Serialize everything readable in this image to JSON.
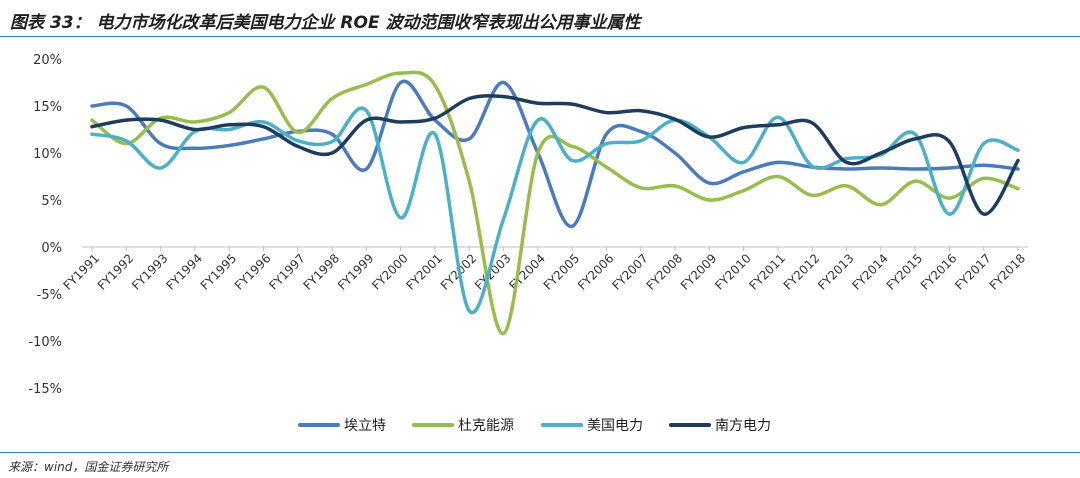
{
  "figure": {
    "title": "图表 33： 电力市场化改革后美国电力企业 ROE 波动范围收窄表现出公用事业属性",
    "source": "来源：wind，国金证券研究所"
  },
  "colors": {
    "rule": "#2c7fb8",
    "axis": "#bfbfbf"
  },
  "chart_data": {
    "type": "line",
    "title": "电力市场化改革后美国电力企业 ROE 波动范围收窄表现出公用事业属性",
    "xlabel": "",
    "ylabel": "",
    "ylim": [
      -15,
      20
    ],
    "ytick_values": [
      -15,
      -10,
      -5,
      0,
      5,
      10,
      15,
      20
    ],
    "ytick_labels": [
      "-15%",
      "-10%",
      "-5%",
      "0%",
      "5%",
      "10%",
      "15%",
      "20%"
    ],
    "grid": false,
    "legend_position": "bottom",
    "categories": [
      "FY1991",
      "FY1992",
      "FY1993",
      "FY1994",
      "FY1995",
      "FY1996",
      "FY1997",
      "FY1998",
      "FY1999",
      "FY2000",
      "FY2001",
      "FY2002",
      "FY2003",
      "FY2004",
      "FY2005",
      "FY2006",
      "FY2007",
      "FY2008",
      "FY2009",
      "FY2010",
      "FY2011",
      "FY2012",
      "FY2013",
      "FY2014",
      "FY2015",
      "FY2016",
      "FY2017",
      "FY2018"
    ],
    "series": [
      {
        "name": "埃立特",
        "color": "#4a7bbd",
        "values": [
          15.0,
          15.0,
          11.0,
          10.5,
          10.8,
          11.5,
          12.3,
          12.0,
          8.3,
          17.5,
          13.5,
          11.5,
          17.5,
          10.0,
          2.2,
          12.0,
          12.3,
          10.0,
          6.8,
          8.0,
          9.0,
          8.5,
          8.3,
          8.4,
          8.3,
          8.4,
          8.7,
          8.3
        ]
      },
      {
        "name": "杜克能源",
        "color": "#98bd4a",
        "values": [
          13.5,
          11.0,
          13.7,
          13.3,
          14.3,
          17.0,
          12.2,
          15.8,
          17.3,
          18.5,
          17.2,
          7.0,
          -9.2,
          10.0,
          10.7,
          8.5,
          6.3,
          6.5,
          5.0,
          6.0,
          7.5,
          5.5,
          6.5,
          4.5,
          7.0,
          5.2,
          7.3,
          6.2
        ]
      },
      {
        "name": "美国电力",
        "color": "#4cb0c7",
        "values": [
          12.0,
          11.3,
          8.4,
          12.3,
          12.5,
          13.3,
          11.3,
          11.2,
          14.5,
          3.1,
          12.0,
          -6.8,
          3.0,
          13.5,
          9.2,
          11.0,
          11.3,
          13.5,
          11.7,
          9.0,
          13.8,
          8.6,
          9.4,
          9.8,
          12.0,
          3.5,
          11.0,
          10.3
        ]
      },
      {
        "name": "南方电力",
        "color": "#1d3c5e",
        "values": [
          12.8,
          13.5,
          13.5,
          12.5,
          13.0,
          12.8,
          10.7,
          10.0,
          13.5,
          13.3,
          13.7,
          15.8,
          16.0,
          15.3,
          15.2,
          14.3,
          14.5,
          13.6,
          11.7,
          12.7,
          13.0,
          13.2,
          9.0,
          10.0,
          11.5,
          11.2,
          3.5,
          9.2
        ]
      }
    ]
  }
}
